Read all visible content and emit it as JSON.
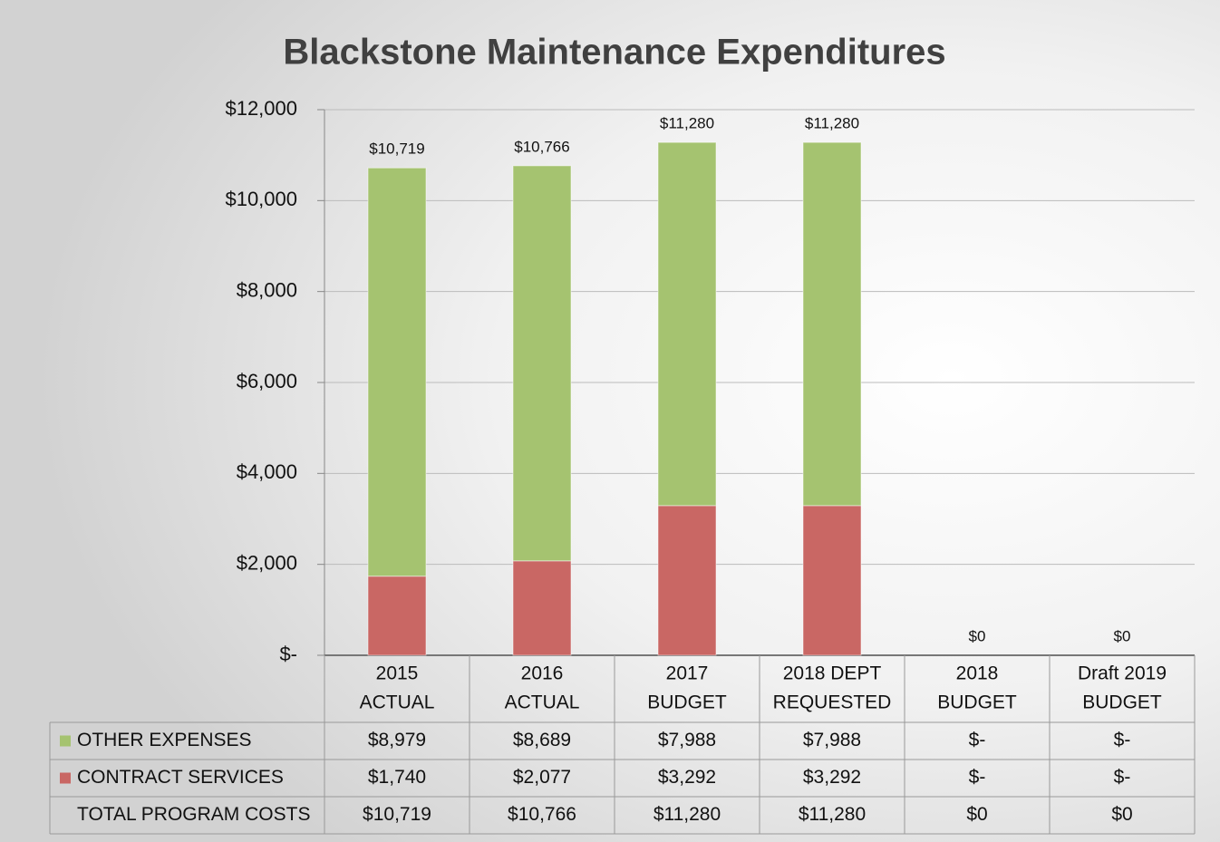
{
  "chart_data": {
    "type": "stacked_bar",
    "title": "Blackstone Maintenance Expenditures",
    "categories": [
      [
        "2015",
        "ACTUAL"
      ],
      [
        "2016",
        "ACTUAL"
      ],
      [
        "2017",
        "BUDGET"
      ],
      [
        "2018 DEPT",
        "REQUESTED"
      ],
      [
        "2018",
        "BUDGET"
      ],
      [
        "Draft 2019",
        "BUDGET"
      ]
    ],
    "series": [
      {
        "name": "CONTRACT SERVICES",
        "color": "#c96764",
        "values": [
          1740,
          2077,
          3292,
          3292,
          0,
          0
        ],
        "value_labels": [
          "$1,740",
          "$2,077",
          "$3,292",
          "$3,292",
          "$-",
          "$-"
        ]
      },
      {
        "name": "OTHER EXPENSES",
        "color": "#a5c370",
        "values": [
          8979,
          8689,
          7988,
          7988,
          0,
          0
        ],
        "value_labels": [
          "$8,979",
          "$8,689",
          "$7,988",
          "$7,988",
          "$-",
          "$-"
        ]
      }
    ],
    "totals": {
      "name": "TOTAL PROGRAM COSTS",
      "values": [
        10719,
        10766,
        11280,
        11280,
        0,
        0
      ],
      "value_labels": [
        "$10,719",
        "$10,766",
        "$11,280",
        "$11,280",
        "$0",
        "$0"
      ]
    },
    "ylim": [
      0,
      12000
    ],
    "yticks": [
      {
        "value": 0,
        "label": "$-"
      },
      {
        "value": 2000,
        "label": "$2,000"
      },
      {
        "value": 4000,
        "label": "$4,000"
      },
      {
        "value": 6000,
        "label": "$6,000"
      },
      {
        "value": 8000,
        "label": "$8,000"
      },
      {
        "value": 10000,
        "label": "$10,000"
      },
      {
        "value": 12000,
        "label": "$12,000"
      }
    ],
    "grid": true,
    "legend": "table"
  }
}
